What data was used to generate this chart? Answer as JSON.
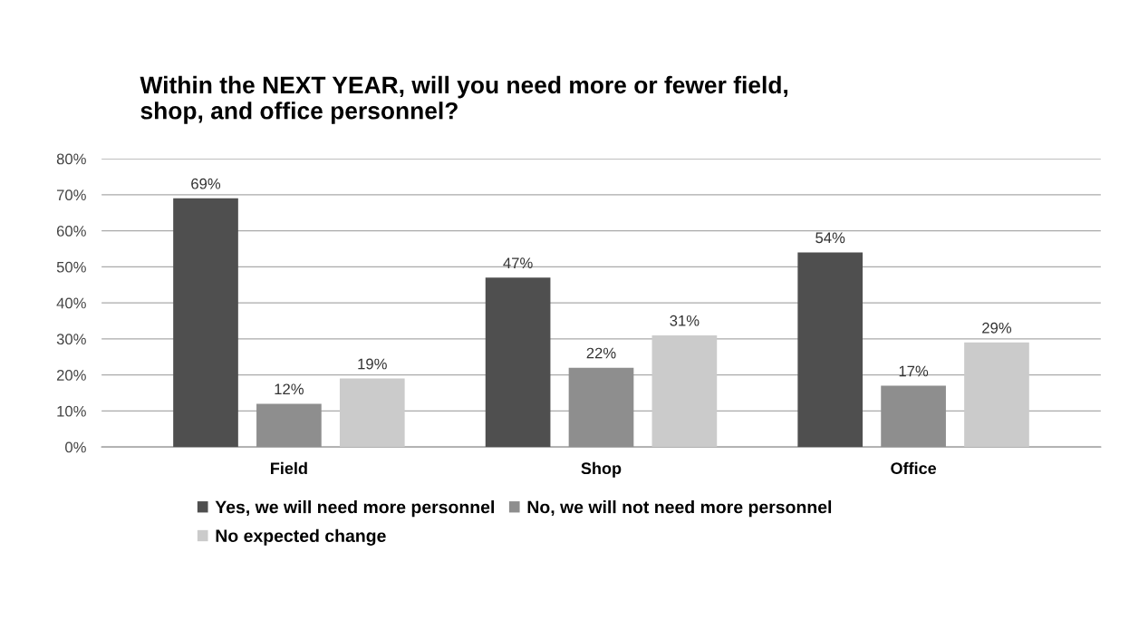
{
  "chart_data": {
    "type": "bar",
    "title": "Within the NEXT YEAR, will you need more or fewer field,\nshop, and office personnel?",
    "categories": [
      "Field",
      "Shop",
      "Office"
    ],
    "series": [
      {
        "name": "Yes, we will need more personnel",
        "color": "#4f4f4f",
        "values": [
          69,
          47,
          54
        ]
      },
      {
        "name": "No, we will not need more personnel",
        "color": "#8e8e8e",
        "values": [
          12,
          22,
          17
        ]
      },
      {
        "name": "No expected change",
        "color": "#cbcbcb",
        "values": [
          19,
          31,
          29
        ]
      }
    ],
    "value_labels": [
      [
        "69%",
        "47%",
        "54%"
      ],
      [
        "12%",
        "22%",
        "17%"
      ],
      [
        "19%",
        "31%",
        "29%"
      ]
    ],
    "ylim": [
      0,
      80
    ],
    "yticks": [
      {
        "value": 0,
        "label": "0%"
      },
      {
        "value": 10,
        "label": "10%"
      },
      {
        "value": 20,
        "label": "20%"
      },
      {
        "value": 30,
        "label": "30%"
      },
      {
        "value": 40,
        "label": "40%"
      },
      {
        "value": 50,
        "label": "50%"
      },
      {
        "value": 60,
        "label": "60%"
      },
      {
        "value": 70,
        "label": "70%"
      },
      {
        "value": 80,
        "label": "80%"
      }
    ],
    "grid": "y",
    "legend": "bottom"
  }
}
